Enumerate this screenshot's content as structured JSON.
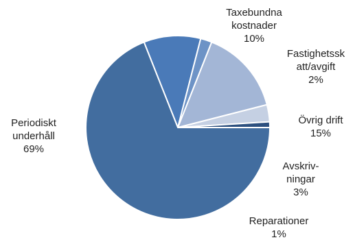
{
  "chart_data": {
    "type": "pie",
    "title": "",
    "slices": [
      {
        "name": "Taxebundna kostnader",
        "label_lines": [
          "Taxebundna",
          "kostnader",
          "10%"
        ],
        "value": 10,
        "color": "#4a7ab8"
      },
      {
        "name": "Fastighetsskatt/avgift",
        "label_lines": [
          "Fastighetssk",
          "att/avgift",
          "2%"
        ],
        "value": 2,
        "color": "#6d93c6"
      },
      {
        "name": "Övrig drift",
        "label_lines": [
          "Övrig drift",
          "15%"
        ],
        "value": 15,
        "color": "#a3b6d6"
      },
      {
        "name": "Avskrivningar",
        "label_lines": [
          "Avskriv-",
          "ningar",
          "3%"
        ],
        "value": 3,
        "color": "#c5d0e3"
      },
      {
        "name": "Reparationer",
        "label_lines": [
          "Reparationer",
          "1%"
        ],
        "value": 1,
        "color": "#2d507f"
      },
      {
        "name": "Periodiskt underhåll",
        "label_lines": [
          "Periodiskt",
          "underhåll",
          "69%"
        ],
        "value": 69,
        "color": "#426d9f"
      }
    ],
    "start_angle_deg": -21.6,
    "direction": "clockwise",
    "legend": "none"
  }
}
